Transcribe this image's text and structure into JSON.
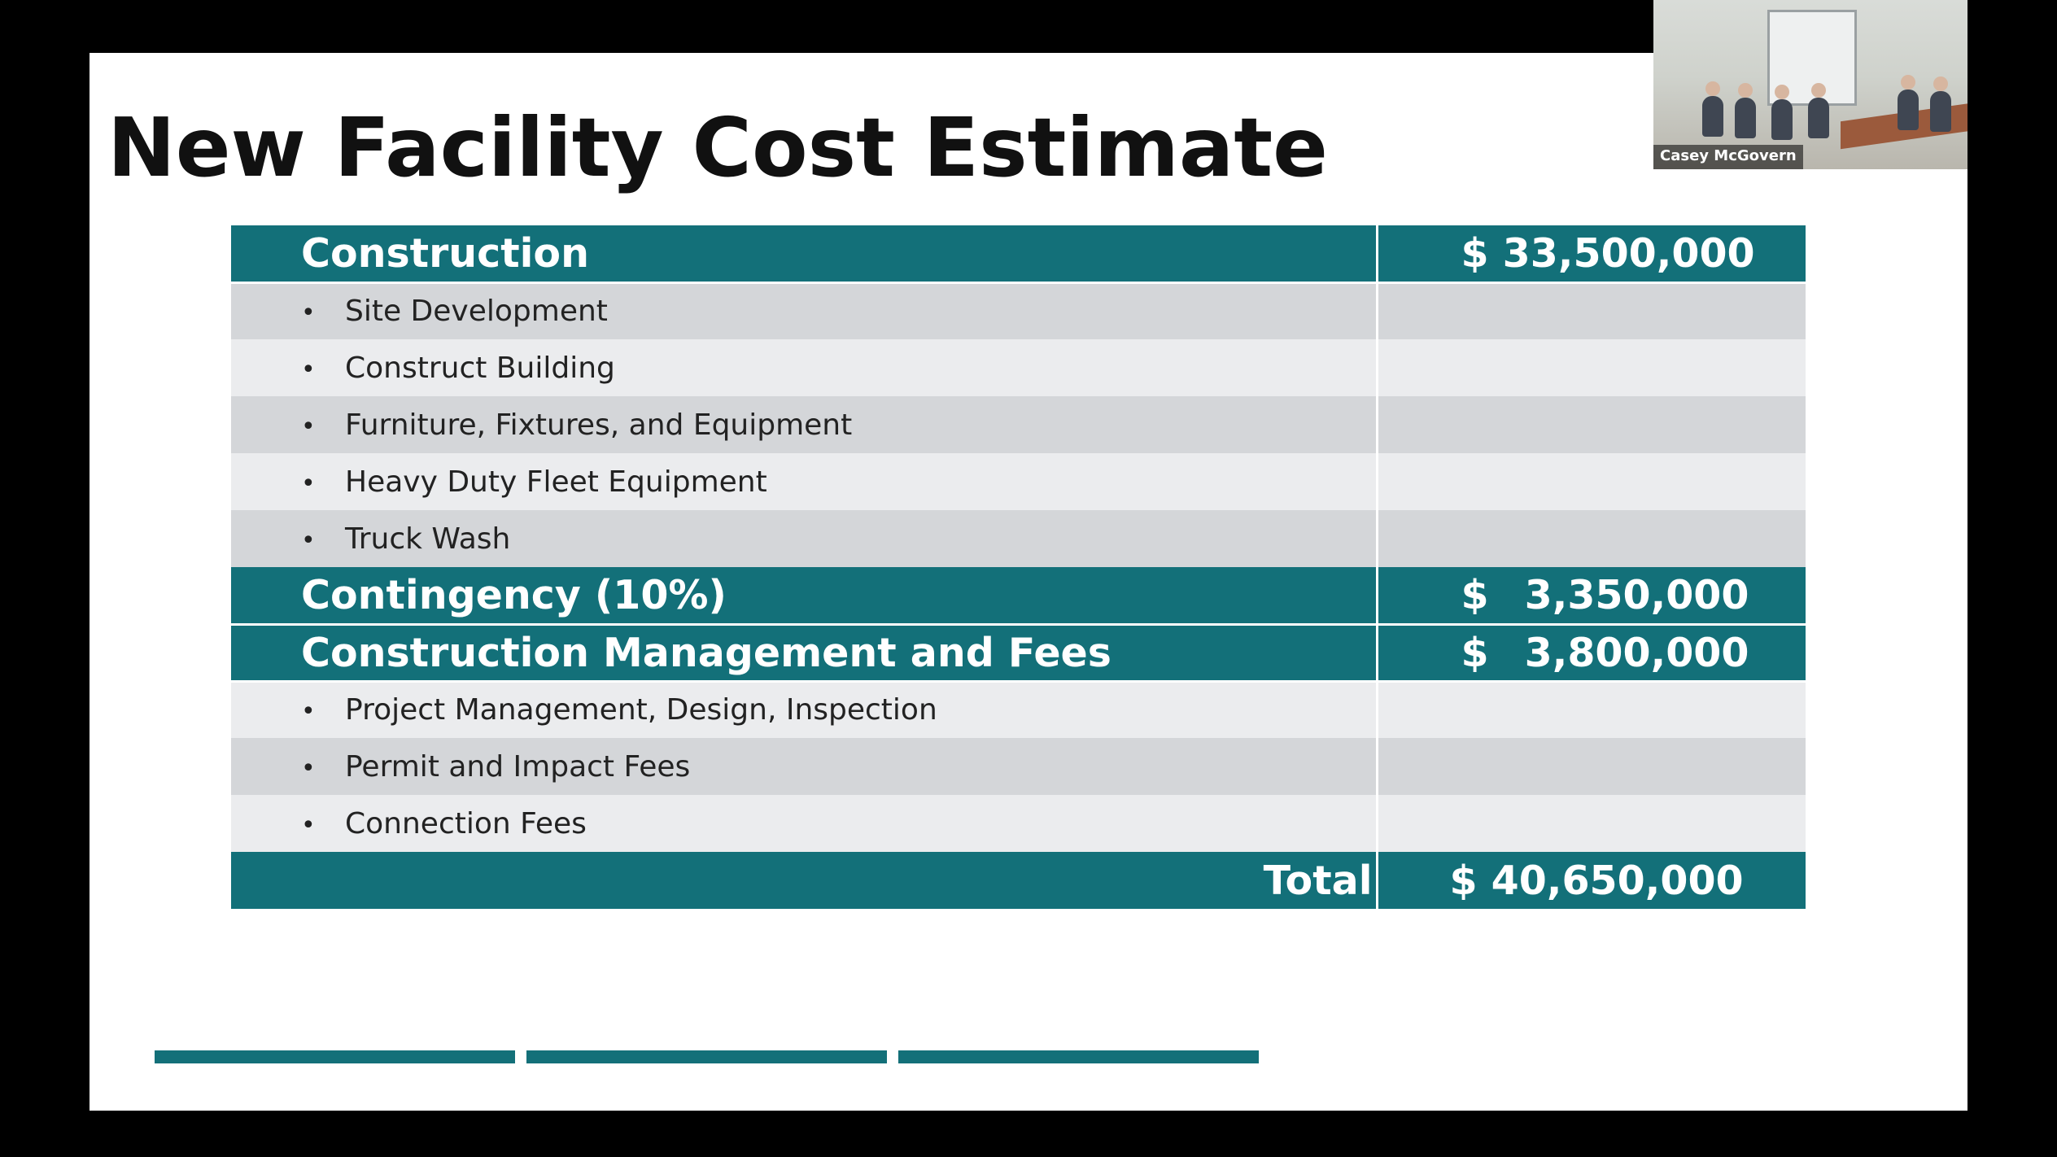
{
  "slide": {
    "title": "New Facility Cost Estimate",
    "accent_color": "#137079",
    "rows": [
      {
        "type": "header",
        "label": "Construction",
        "currency": "$",
        "amount": "33,500,000"
      },
      {
        "type": "item",
        "shade": "dark",
        "label": "Site Development"
      },
      {
        "type": "item",
        "shade": "light",
        "label": "Construct Building"
      },
      {
        "type": "item",
        "shade": "dark",
        "label": "Furniture, Fixtures, and Equipment"
      },
      {
        "type": "item",
        "shade": "light",
        "label": "Heavy Duty Fleet Equipment"
      },
      {
        "type": "item",
        "shade": "dark",
        "label": "Truck Wash"
      },
      {
        "type": "header",
        "label": "Contingency (10%)",
        "currency": "$",
        "amount": "3,350,000"
      },
      {
        "type": "header",
        "label": "Construction Management and Fees",
        "currency": "$",
        "amount": "3,800,000"
      },
      {
        "type": "item",
        "shade": "light",
        "label": "Project Management, Design, Inspection"
      },
      {
        "type": "item",
        "shade": "dark",
        "label": "Permit and Impact Fees"
      },
      {
        "type": "item",
        "shade": "light",
        "label": "Connection Fees"
      }
    ],
    "total": {
      "label": "Total",
      "value": "$ 40,650,000"
    },
    "bullet": "•"
  },
  "video_tile": {
    "participant_name": "Casey McGovern"
  }
}
